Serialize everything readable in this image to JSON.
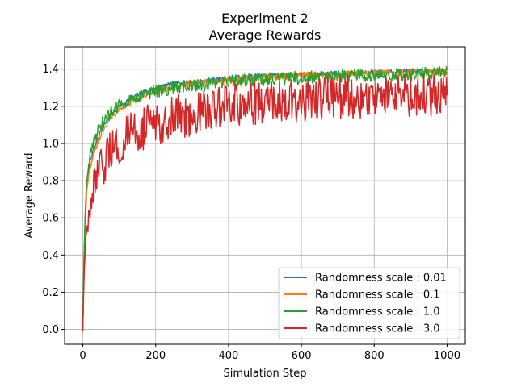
{
  "chart_data": {
    "type": "line",
    "title": "Experiment 2",
    "subtitle": "Average Rewards",
    "xlabel": "Simulation Step",
    "ylabel": "Average Reward",
    "xlim": [
      -50,
      1050
    ],
    "ylim": [
      -0.08,
      1.52
    ],
    "x_ticks": [
      0,
      200,
      400,
      600,
      800,
      1000
    ],
    "y_ticks": [
      0.0,
      0.2,
      0.4,
      0.6,
      0.8,
      1.0,
      1.2,
      1.4
    ],
    "grid": true,
    "legend_position": "lower-right",
    "x_range": [
      0,
      1000
    ],
    "series": [
      {
        "name": "Randomness scale : 0.01",
        "color": "#1f77b4",
        "x": [
          0,
          3,
          6,
          10,
          15,
          20,
          30,
          40,
          50,
          60,
          80,
          100,
          130,
          160,
          200,
          250,
          300,
          350,
          400,
          450,
          500,
          550,
          600,
          650,
          700,
          750,
          800,
          850,
          900,
          950,
          1000
        ],
        "y": [
          0.0,
          0.35,
          0.55,
          0.75,
          0.85,
          0.9,
          0.97,
          1.02,
          1.07,
          1.11,
          1.16,
          1.2,
          1.24,
          1.27,
          1.3,
          1.32,
          1.33,
          1.34,
          1.35,
          1.36,
          1.365,
          1.37,
          1.37,
          1.375,
          1.38,
          1.38,
          1.385,
          1.39,
          1.39,
          1.39,
          1.39
        ],
        "noise": 0.012
      },
      {
        "name": "Randomness scale : 0.1",
        "color": "#ff7f0e",
        "x": [
          0,
          3,
          6,
          10,
          15,
          20,
          30,
          40,
          50,
          60,
          80,
          100,
          130,
          160,
          200,
          250,
          300,
          350,
          400,
          450,
          500,
          550,
          600,
          650,
          700,
          750,
          800,
          850,
          900,
          950,
          1000
        ],
        "y": [
          -0.01,
          0.3,
          0.52,
          0.72,
          0.82,
          0.87,
          0.95,
          1.0,
          1.05,
          1.09,
          1.14,
          1.18,
          1.22,
          1.25,
          1.28,
          1.3,
          1.32,
          1.33,
          1.34,
          1.35,
          1.355,
          1.36,
          1.365,
          1.37,
          1.37,
          1.375,
          1.38,
          1.38,
          1.385,
          1.385,
          1.385
        ],
        "noise": 0.018
      },
      {
        "name": "Randomness scale : 1.0",
        "color": "#2ca02c",
        "x": [
          0,
          3,
          6,
          10,
          15,
          20,
          30,
          40,
          50,
          60,
          80,
          100,
          130,
          160,
          200,
          250,
          300,
          350,
          400,
          450,
          500,
          550,
          600,
          650,
          700,
          750,
          800,
          850,
          900,
          950,
          1000
        ],
        "y": [
          0.02,
          0.38,
          0.6,
          0.78,
          0.88,
          0.93,
          1.0,
          1.06,
          1.1,
          1.13,
          1.17,
          1.21,
          1.24,
          1.26,
          1.28,
          1.3,
          1.31,
          1.32,
          1.33,
          1.34,
          1.345,
          1.35,
          1.355,
          1.36,
          1.36,
          1.365,
          1.37,
          1.37,
          1.375,
          1.375,
          1.38
        ],
        "noise": 0.035
      },
      {
        "name": "Randomness scale : 3.0",
        "color": "#d62728",
        "x": [
          0,
          3,
          6,
          10,
          15,
          20,
          30,
          40,
          50,
          60,
          80,
          100,
          130,
          160,
          200,
          250,
          300,
          350,
          400,
          450,
          500,
          550,
          600,
          650,
          700,
          750,
          800,
          850,
          900,
          950,
          1000
        ],
        "y": [
          0.0,
          0.25,
          0.4,
          0.5,
          0.58,
          0.65,
          0.74,
          0.8,
          0.85,
          0.9,
          0.96,
          1.0,
          1.05,
          1.08,
          1.11,
          1.14,
          1.16,
          1.18,
          1.2,
          1.21,
          1.22,
          1.23,
          1.235,
          1.24,
          1.245,
          1.25,
          1.255,
          1.26,
          1.26,
          1.265,
          1.27
        ],
        "noise": 0.12
      }
    ]
  }
}
